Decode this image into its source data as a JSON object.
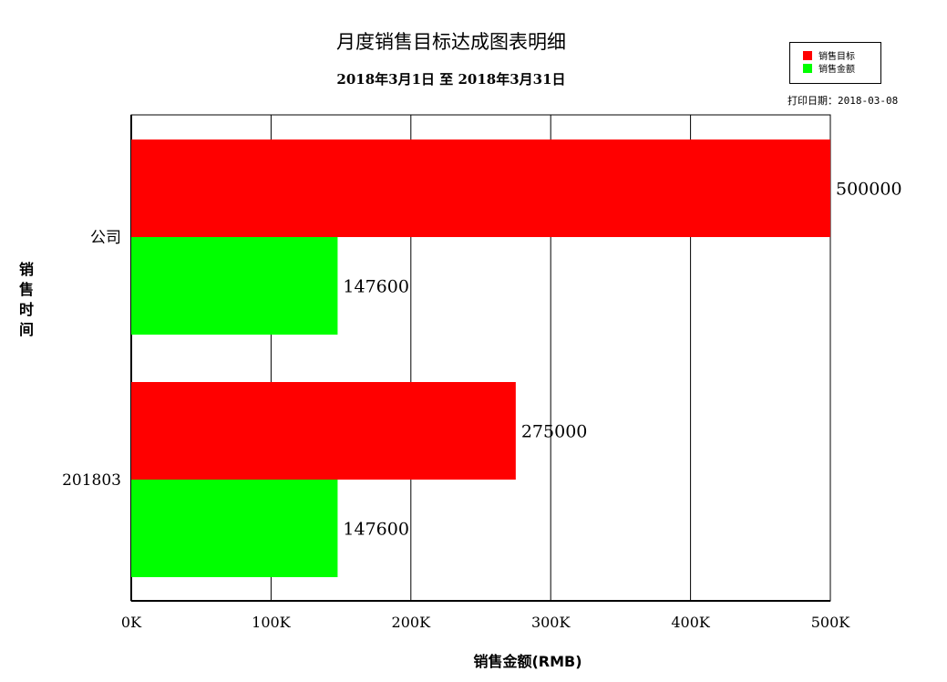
{
  "colors": {
    "target": "#ff0000",
    "sales": "#00ff00"
  },
  "header": {
    "title": "月度销售目标达成图表明细",
    "subtitle": "2018年3月1日  至  2018年3月31日",
    "print_date": "打印日期：2018-03-08"
  },
  "chart_data": {
    "type": "bar",
    "orientation": "horizontal",
    "title": "月度销售目标达成图表明细",
    "subtitle": "2018年3月1日  至  2018年3月31日",
    "xlabel": "销售金额(RMB)",
    "ylabel": "销售时间",
    "xlim": [
      0,
      500000
    ],
    "x_ticks": [
      0,
      100000,
      200000,
      300000,
      400000,
      500000
    ],
    "x_tick_labels": [
      "0K",
      "100K",
      "200K",
      "300K",
      "400K",
      "500K"
    ],
    "grid": "vertical",
    "legend_position": "top-right",
    "categories": [
      "公司",
      "201803"
    ],
    "series": [
      {
        "name": "销售目标",
        "color": "#ff0000",
        "values": [
          500000,
          275000
        ]
      },
      {
        "name": "销售金额",
        "color": "#00ff00",
        "values": [
          147600,
          147600
        ]
      }
    ]
  }
}
